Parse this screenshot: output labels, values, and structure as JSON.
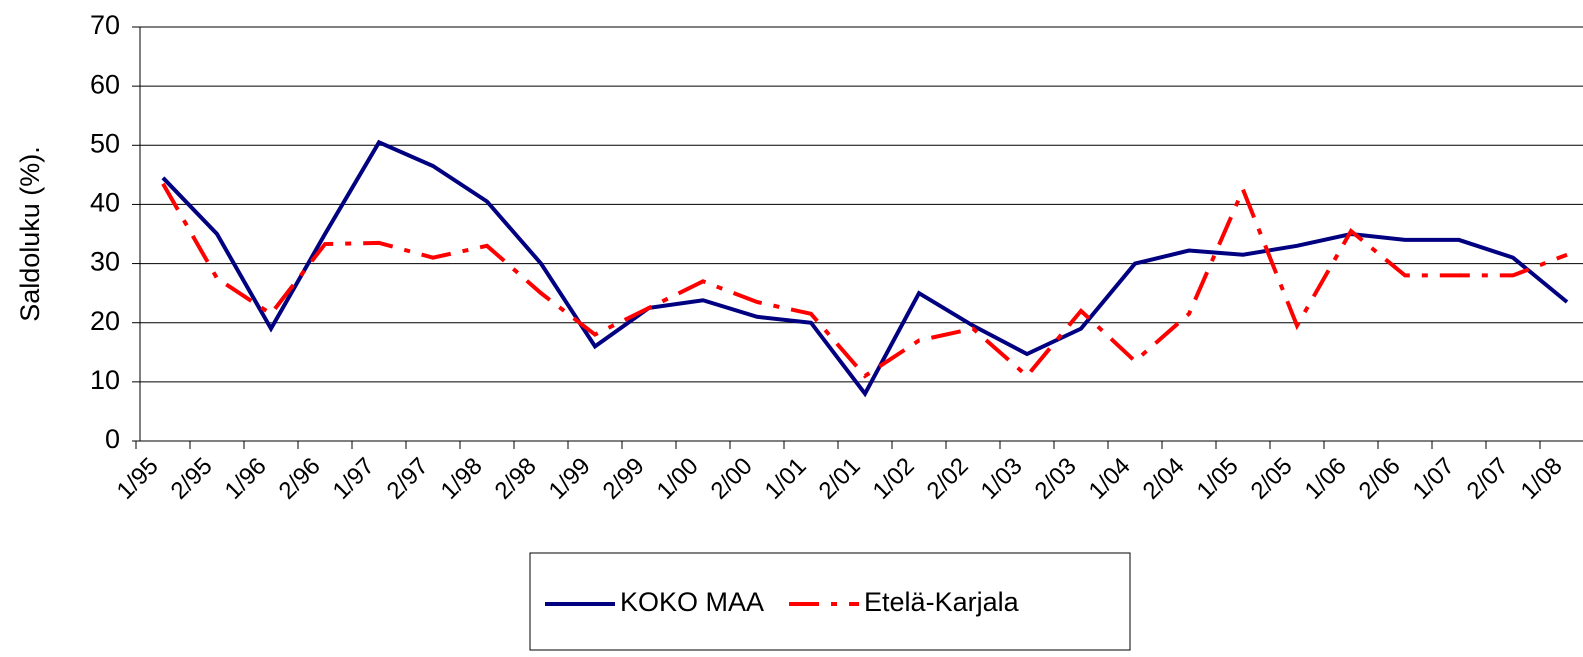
{
  "chart_data": {
    "type": "line",
    "y_label": "Saldoluku (%).",
    "categories": [
      "1/95",
      "2/95",
      "1/96",
      "2/96",
      "1/97",
      "2/97",
      "1/98",
      "2/98",
      "1/99",
      "2/99",
      "1/00",
      "2/00",
      "1/01",
      "2/01",
      "1/02",
      "2/02",
      "1/03",
      "2/03",
      "1/04",
      "2/04",
      "1/05",
      "2/05",
      "1/06",
      "2/06",
      "1/07",
      "2/07",
      "1/08"
    ],
    "series": [
      {
        "name": "KOKO MAA",
        "color": "#000080",
        "dash": "solid",
        "values": [
          44.5,
          35,
          19,
          35,
          50.5,
          46.5,
          40.5,
          30,
          16,
          22.5,
          23.8,
          21,
          20,
          8,
          25,
          19.5,
          14.7,
          19,
          30,
          32.2,
          31.5,
          33,
          35,
          34,
          34,
          31,
          23.5
        ]
      },
      {
        "name": "Etelä-Karjala",
        "color": "#ff0000",
        "dash": "dashdot",
        "values": [
          43.5,
          27.5,
          21.5,
          33.3,
          33.5,
          31,
          33,
          25,
          18,
          22.5,
          27,
          23.5,
          21.5,
          11,
          17,
          19,
          11,
          22,
          13.5,
          21.5,
          42.5,
          19.5,
          35.5,
          28,
          28,
          28,
          31.5
        ]
      }
    ],
    "ylim": [
      0,
      70
    ],
    "yticks": [
      0,
      10,
      20,
      30,
      40,
      50,
      60,
      70
    ],
    "grid": true,
    "legend": "bottom"
  }
}
